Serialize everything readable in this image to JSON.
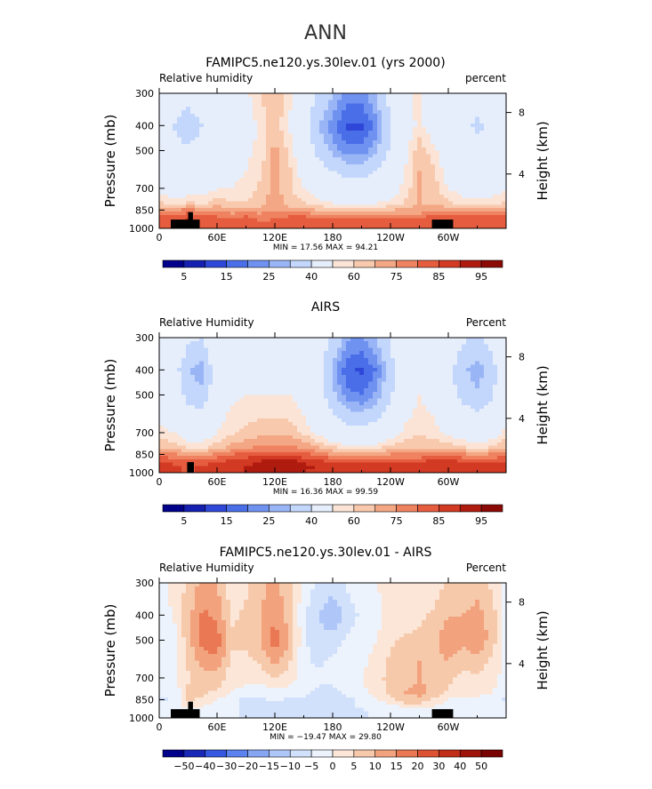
{
  "page": {
    "season": "ANN"
  },
  "palettes": {
    "abs": [
      "#00008a",
      "#1520b0",
      "#2f47d8",
      "#4a6ee8",
      "#6f92f0",
      "#99b5f6",
      "#c3d6fb",
      "#e6eefb",
      "#fbe4d6",
      "#f8c9ad",
      "#f4a784",
      "#ef8361",
      "#e65c3f",
      "#d23a23",
      "#b01b10",
      "#8b0a06"
    ],
    "diff": [
      "#00008a",
      "#1a28b8",
      "#3558e0",
      "#5b82ee",
      "#86a6f4",
      "#aec6f8",
      "#d2e1fb",
      "#edf3fc",
      "#fbe6d8",
      "#f7c9ab",
      "#f2a27d",
      "#ea7854",
      "#dc5233",
      "#c22f18",
      "#9e1409",
      "#7a0303"
    ]
  },
  "chart_data": [
    {
      "type": "heatmap",
      "title": "FAMIPC5.ne120.ys.30lev.01 (yrs 2000)",
      "left_label": "Relative humidity",
      "right_label": "percent",
      "ylabel": "Pressure (mb)",
      "ylabel_right": "Height (km)",
      "x_ticks": [
        "0",
        "60E",
        "120E",
        "180",
        "120W",
        "60W"
      ],
      "y_ticks": [
        "300",
        "400",
        "500",
        "700",
        "850",
        "1000"
      ],
      "y2_ticks": [
        "8",
        "4"
      ],
      "stats": "MIN =   17.56   MAX =   94.21",
      "colorbar_labels": [
        "5",
        "15",
        "25",
        "40",
        "60",
        "75",
        "85",
        "95"
      ],
      "palette": "abs",
      "grid": {
        "lon": [
          0,
          15,
          30,
          45,
          60,
          75,
          90,
          105,
          120,
          135,
          150,
          165,
          180,
          195,
          210,
          225,
          240,
          255,
          270,
          285,
          300,
          315,
          330,
          345,
          360
        ],
        "p": [
          300,
          400,
          500,
          600,
          700,
          800,
          850,
          900,
          950,
          1000
        ],
        "values": [
          [
            55,
            48,
            44,
            50,
            55,
            50,
            58,
            65,
            70,
            62,
            50,
            38,
            30,
            22,
            22,
            30,
            45,
            58,
            62,
            55,
            50,
            48,
            46,
            48,
            55
          ],
          [
            50,
            40,
            33,
            40,
            48,
            48,
            55,
            62,
            68,
            60,
            45,
            30,
            22,
            14,
            14,
            22,
            38,
            55,
            62,
            55,
            48,
            42,
            38,
            42,
            50
          ],
          [
            52,
            44,
            42,
            46,
            50,
            52,
            58,
            62,
            72,
            64,
            50,
            36,
            28,
            22,
            22,
            28,
            42,
            58,
            68,
            62,
            52,
            48,
            45,
            46,
            52
          ],
          [
            55,
            50,
            48,
            52,
            56,
            58,
            60,
            64,
            72,
            66,
            56,
            46,
            40,
            36,
            36,
            40,
            50,
            60,
            70,
            66,
            56,
            52,
            50,
            52,
            55
          ],
          [
            58,
            55,
            54,
            56,
            60,
            60,
            62,
            66,
            72,
            66,
            60,
            55,
            50,
            46,
            46,
            50,
            55,
            62,
            70,
            68,
            60,
            56,
            55,
            56,
            58
          ],
          [
            66,
            62,
            66,
            64,
            68,
            66,
            66,
            68,
            74,
            68,
            66,
            62,
            60,
            58,
            58,
            60,
            62,
            66,
            70,
            70,
            66,
            64,
            62,
            64,
            66
          ],
          [
            72,
            72,
            78,
            72,
            74,
            72,
            72,
            72,
            74,
            72,
            72,
            70,
            68,
            68,
            68,
            68,
            70,
            72,
            72,
            74,
            72,
            72,
            72,
            72,
            72
          ],
          [
            80,
            80,
            84,
            80,
            80,
            78,
            80,
            78,
            78,
            80,
            80,
            78,
            78,
            78,
            78,
            78,
            78,
            78,
            78,
            82,
            80,
            80,
            80,
            80,
            80
          ],
          [
            84,
            82,
            86,
            84,
            84,
            82,
            84,
            80,
            82,
            84,
            84,
            84,
            82,
            82,
            82,
            82,
            82,
            82,
            82,
            84,
            84,
            84,
            82,
            82,
            84
          ],
          [
            82,
            80,
            82,
            82,
            84,
            82,
            84,
            80,
            82,
            84,
            84,
            84,
            84,
            84,
            84,
            84,
            82,
            82,
            82,
            84,
            84,
            84,
            84,
            82,
            82
          ]
        ]
      },
      "topography": [
        {
          "lon0": 12,
          "lon1": 42,
          "p": 925
        },
        {
          "lon0": 30,
          "lon1": 35,
          "p": 865
        }
      ],
      "topography_right": [
        {
          "lon0": 283,
          "lon1": 305,
          "p": 925
        }
      ]
    },
    {
      "type": "heatmap",
      "title": "AIRS",
      "left_label": "Relative Humidity",
      "right_label": "Percent",
      "ylabel": "Pressure (mb)",
      "ylabel_right": "Height (km)",
      "x_ticks": [
        "0",
        "60E",
        "120E",
        "180",
        "120W",
        "60W"
      ],
      "y_ticks": [
        "300",
        "400",
        "500",
        "700",
        "850",
        "1000"
      ],
      "y2_ticks": [
        "8",
        "4"
      ],
      "stats": "MIN =   16.36   MAX =   99.59",
      "colorbar_labels": [
        "5",
        "15",
        "25",
        "40",
        "60",
        "75",
        "85",
        "95"
      ],
      "palette": "abs",
      "grid": {
        "lon": [
          0,
          15,
          30,
          45,
          60,
          75,
          90,
          105,
          120,
          135,
          150,
          165,
          180,
          195,
          210,
          225,
          240,
          255,
          270,
          285,
          300,
          315,
          330,
          345,
          360
        ],
        "p": [
          300,
          400,
          500,
          600,
          700,
          800,
          850,
          900,
          950,
          1000
        ],
        "values": [
          [
            58,
            55,
            42,
            40,
            55,
            58,
            58,
            58,
            58,
            58,
            58,
            50,
            38,
            26,
            24,
            30,
            42,
            55,
            60,
            56,
            50,
            42,
            38,
            44,
            58
          ],
          [
            52,
            46,
            30,
            26,
            48,
            56,
            56,
            56,
            56,
            56,
            54,
            44,
            28,
            16,
            14,
            20,
            34,
            52,
            58,
            54,
            44,
            32,
            26,
            34,
            52
          ],
          [
            54,
            50,
            36,
            32,
            50,
            58,
            60,
            60,
            60,
            60,
            56,
            46,
            32,
            22,
            20,
            26,
            38,
            54,
            60,
            56,
            46,
            36,
            32,
            38,
            54
          ],
          [
            58,
            56,
            46,
            44,
            56,
            62,
            64,
            64,
            64,
            64,
            60,
            52,
            42,
            34,
            32,
            36,
            46,
            58,
            62,
            60,
            52,
            46,
            42,
            46,
            58
          ],
          [
            62,
            60,
            55,
            54,
            60,
            64,
            66,
            68,
            68,
            68,
            64,
            58,
            52,
            46,
            46,
            48,
            54,
            62,
            64,
            62,
            58,
            54,
            52,
            54,
            62
          ],
          [
            70,
            68,
            64,
            64,
            68,
            72,
            74,
            76,
            76,
            76,
            74,
            70,
            66,
            62,
            62,
            64,
            68,
            70,
            70,
            70,
            68,
            66,
            64,
            66,
            70
          ],
          [
            78,
            76,
            74,
            74,
            76,
            80,
            82,
            84,
            84,
            84,
            82,
            78,
            74,
            72,
            72,
            72,
            76,
            76,
            76,
            78,
            78,
            76,
            74,
            76,
            78
          ],
          [
            84,
            84,
            82,
            82,
            84,
            86,
            88,
            90,
            92,
            92,
            88,
            86,
            84,
            84,
            84,
            84,
            84,
            84,
            84,
            86,
            86,
            84,
            84,
            84,
            84
          ],
          [
            88,
            86,
            84,
            86,
            88,
            88,
            90,
            92,
            94,
            94,
            92,
            90,
            88,
            88,
            88,
            88,
            88,
            88,
            88,
            88,
            88,
            88,
            88,
            88,
            88
          ],
          [
            88,
            86,
            84,
            86,
            88,
            88,
            90,
            92,
            92,
            92,
            90,
            88,
            88,
            88,
            88,
            88,
            88,
            88,
            88,
            88,
            88,
            88,
            88,
            88,
            88
          ]
        ]
      },
      "topography": [
        {
          "lon0": 29,
          "lon1": 36,
          "p": 910
        }
      ],
      "topography_right": []
    },
    {
      "type": "heatmap",
      "title": "FAMIPC5.ne120.ys.30lev.01 - AIRS",
      "left_label": "Relative Humidity",
      "right_label": "Percent",
      "ylabel": "Pressure (mb)",
      "ylabel_right": "Height (km)",
      "x_ticks": [
        "0",
        "60E",
        "120E",
        "180",
        "120W",
        "60W"
      ],
      "y_ticks": [
        "300",
        "400",
        "500",
        "700",
        "850",
        "1000"
      ],
      "y2_ticks": [
        "8",
        "4"
      ],
      "stats": "MIN =  −19.47   MAX =   29.80",
      "colorbar_labels": [
        "−50",
        "−40",
        "−30",
        "−20",
        "−15",
        "−10",
        "−5",
        "0",
        "5",
        "10",
        "15",
        "20",
        "30",
        "40",
        "50"
      ],
      "palette": "diff",
      "grid": {
        "lon": [
          0,
          15,
          30,
          45,
          60,
          75,
          90,
          105,
          120,
          135,
          150,
          165,
          180,
          195,
          210,
          225,
          240,
          255,
          270,
          285,
          300,
          315,
          330,
          345,
          360
        ],
        "p": [
          300,
          400,
          500,
          600,
          700,
          800,
          850,
          900,
          950,
          1000
        ],
        "values": [
          [
            -2,
            2,
            6,
            12,
            10,
            2,
            4,
            8,
            12,
            6,
            -2,
            -6,
            -8,
            -4,
            -2,
            0,
            2,
            4,
            2,
            2,
            6,
            6,
            8,
            4,
            -2
          ],
          [
            -2,
            0,
            8,
            16,
            14,
            4,
            6,
            10,
            14,
            8,
            -4,
            -10,
            -14,
            -8,
            -4,
            -2,
            2,
            2,
            4,
            6,
            10,
            10,
            12,
            8,
            -2
          ],
          [
            -2,
            -2,
            8,
            18,
            18,
            6,
            6,
            10,
            18,
            10,
            -4,
            -8,
            -8,
            -4,
            -2,
            0,
            4,
            6,
            6,
            8,
            14,
            12,
            14,
            8,
            -2
          ],
          [
            -2,
            -2,
            6,
            12,
            14,
            4,
            4,
            6,
            12,
            6,
            -4,
            -6,
            -4,
            -2,
            -2,
            2,
            6,
            8,
            10,
            8,
            10,
            6,
            8,
            4,
            -2
          ],
          [
            -2,
            -2,
            4,
            8,
            8,
            2,
            2,
            2,
            6,
            2,
            -2,
            -4,
            -4,
            -2,
            0,
            4,
            6,
            8,
            10,
            8,
            6,
            4,
            4,
            2,
            -2
          ],
          [
            -4,
            -4,
            6,
            6,
            4,
            0,
            -2,
            -4,
            -2,
            -2,
            -4,
            -6,
            -6,
            -4,
            -2,
            2,
            6,
            10,
            12,
            8,
            4,
            2,
            2,
            0,
            -4
          ],
          [
            -6,
            -4,
            6,
            4,
            0,
            -4,
            -6,
            -6,
            -4,
            -6,
            -6,
            -8,
            -8,
            -6,
            -4,
            0,
            4,
            8,
            8,
            4,
            0,
            -2,
            -2,
            -4,
            -6
          ],
          [
            -4,
            -4,
            2,
            0,
            -2,
            -4,
            -6,
            -8,
            -6,
            -6,
            -6,
            -8,
            -8,
            -6,
            -4,
            -4,
            -2,
            2,
            2,
            0,
            -2,
            -4,
            -4,
            -4,
            -4
          ],
          [
            -4,
            -4,
            -2,
            -4,
            -4,
            -4,
            -6,
            -8,
            -10,
            -8,
            -8,
            -8,
            -6,
            -6,
            -6,
            -4,
            -4,
            -4,
            -4,
            -2,
            -4,
            -4,
            -4,
            -4,
            -4
          ],
          [
            -4,
            -4,
            -2,
            -4,
            -4,
            -4,
            -6,
            -8,
            -8,
            -8,
            -8,
            -8,
            -6,
            -6,
            -6,
            -4,
            -4,
            -4,
            -4,
            -2,
            -4,
            -4,
            -4,
            -4,
            -4
          ]
        ]
      },
      "topography": [
        {
          "lon0": 12,
          "lon1": 42,
          "p": 925
        },
        {
          "lon0": 30,
          "lon1": 35,
          "p": 865
        }
      ],
      "topography_right": [
        {
          "lon0": 283,
          "lon1": 305,
          "p": 925
        }
      ]
    }
  ]
}
